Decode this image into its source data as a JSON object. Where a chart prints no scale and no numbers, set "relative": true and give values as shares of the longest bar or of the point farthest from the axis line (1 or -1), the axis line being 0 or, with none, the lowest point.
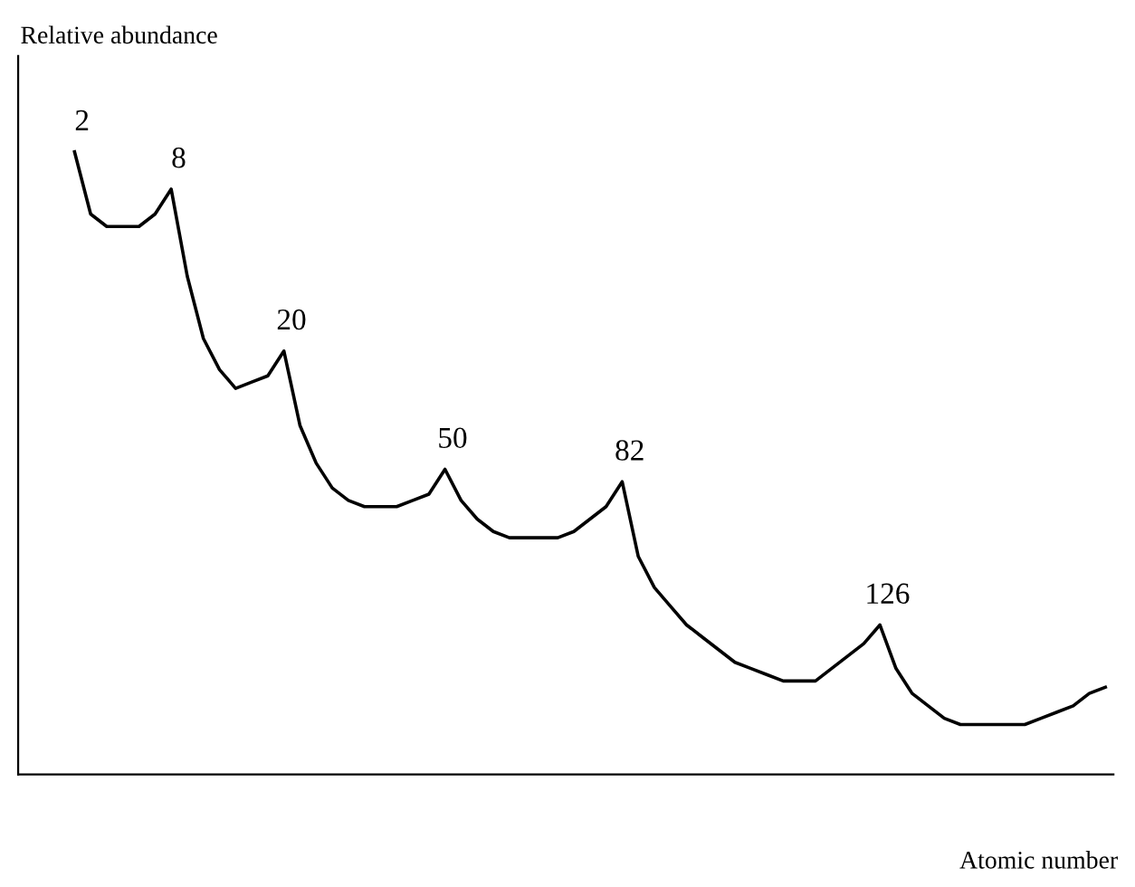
{
  "chart_data": {
    "type": "line",
    "relative": true,
    "xlabel": "Atomic number",
    "ylabel": "Relative abundance",
    "categories": [
      null,
      null,
      null,
      null,
      null,
      null,
      null,
      null,
      null,
      null,
      null,
      null,
      null,
      null,
      null,
      null,
      null,
      null,
      null,
      null,
      null,
      null,
      null,
      null,
      null,
      null,
      null,
      null,
      null,
      null,
      null,
      null,
      null,
      null,
      null,
      null,
      null,
      null,
      null,
      null,
      null,
      null,
      null,
      null,
      null,
      null,
      null,
      null,
      null,
      null,
      null,
      null,
      null,
      null,
      null,
      null,
      null,
      null,
      null,
      null,
      null,
      null,
      null,
      null,
      null
    ],
    "series": [
      {
        "color": "#000000",
        "values": [
          1.0,
          0.9,
          0.88,
          0.88,
          0.88,
          0.9,
          0.94,
          0.8,
          0.7,
          0.65,
          0.62,
          0.63,
          0.64,
          0.68,
          0.56,
          0.5,
          0.46,
          0.44,
          0.43,
          0.43,
          0.43,
          0.44,
          0.45,
          0.49,
          0.44,
          0.41,
          0.39,
          0.38,
          0.38,
          0.38,
          0.38,
          0.39,
          0.41,
          0.43,
          0.47,
          0.35,
          0.3,
          0.27,
          0.24,
          0.22,
          0.2,
          0.18,
          0.17,
          0.16,
          0.15,
          0.15,
          0.15,
          0.17,
          0.19,
          0.21,
          0.24,
          0.17,
          0.13,
          0.11,
          0.09,
          0.08,
          0.08,
          0.08,
          0.08,
          0.08,
          0.09,
          0.1,
          0.11,
          0.13,
          0.14
        ]
      }
    ],
    "annotations": [
      {
        "text": "2",
        "y": 1.0
      },
      {
        "text": "8",
        "y": 0.94
      },
      {
        "text": "20",
        "y": 0.68
      },
      {
        "text": "50",
        "y": 0.49
      },
      {
        "text": "82",
        "y": 0.47
      },
      {
        "text": "126",
        "y": 0.24
      }
    ],
    "grid": false,
    "legend": false,
    "marker": "none",
    "line_style": "solid"
  }
}
